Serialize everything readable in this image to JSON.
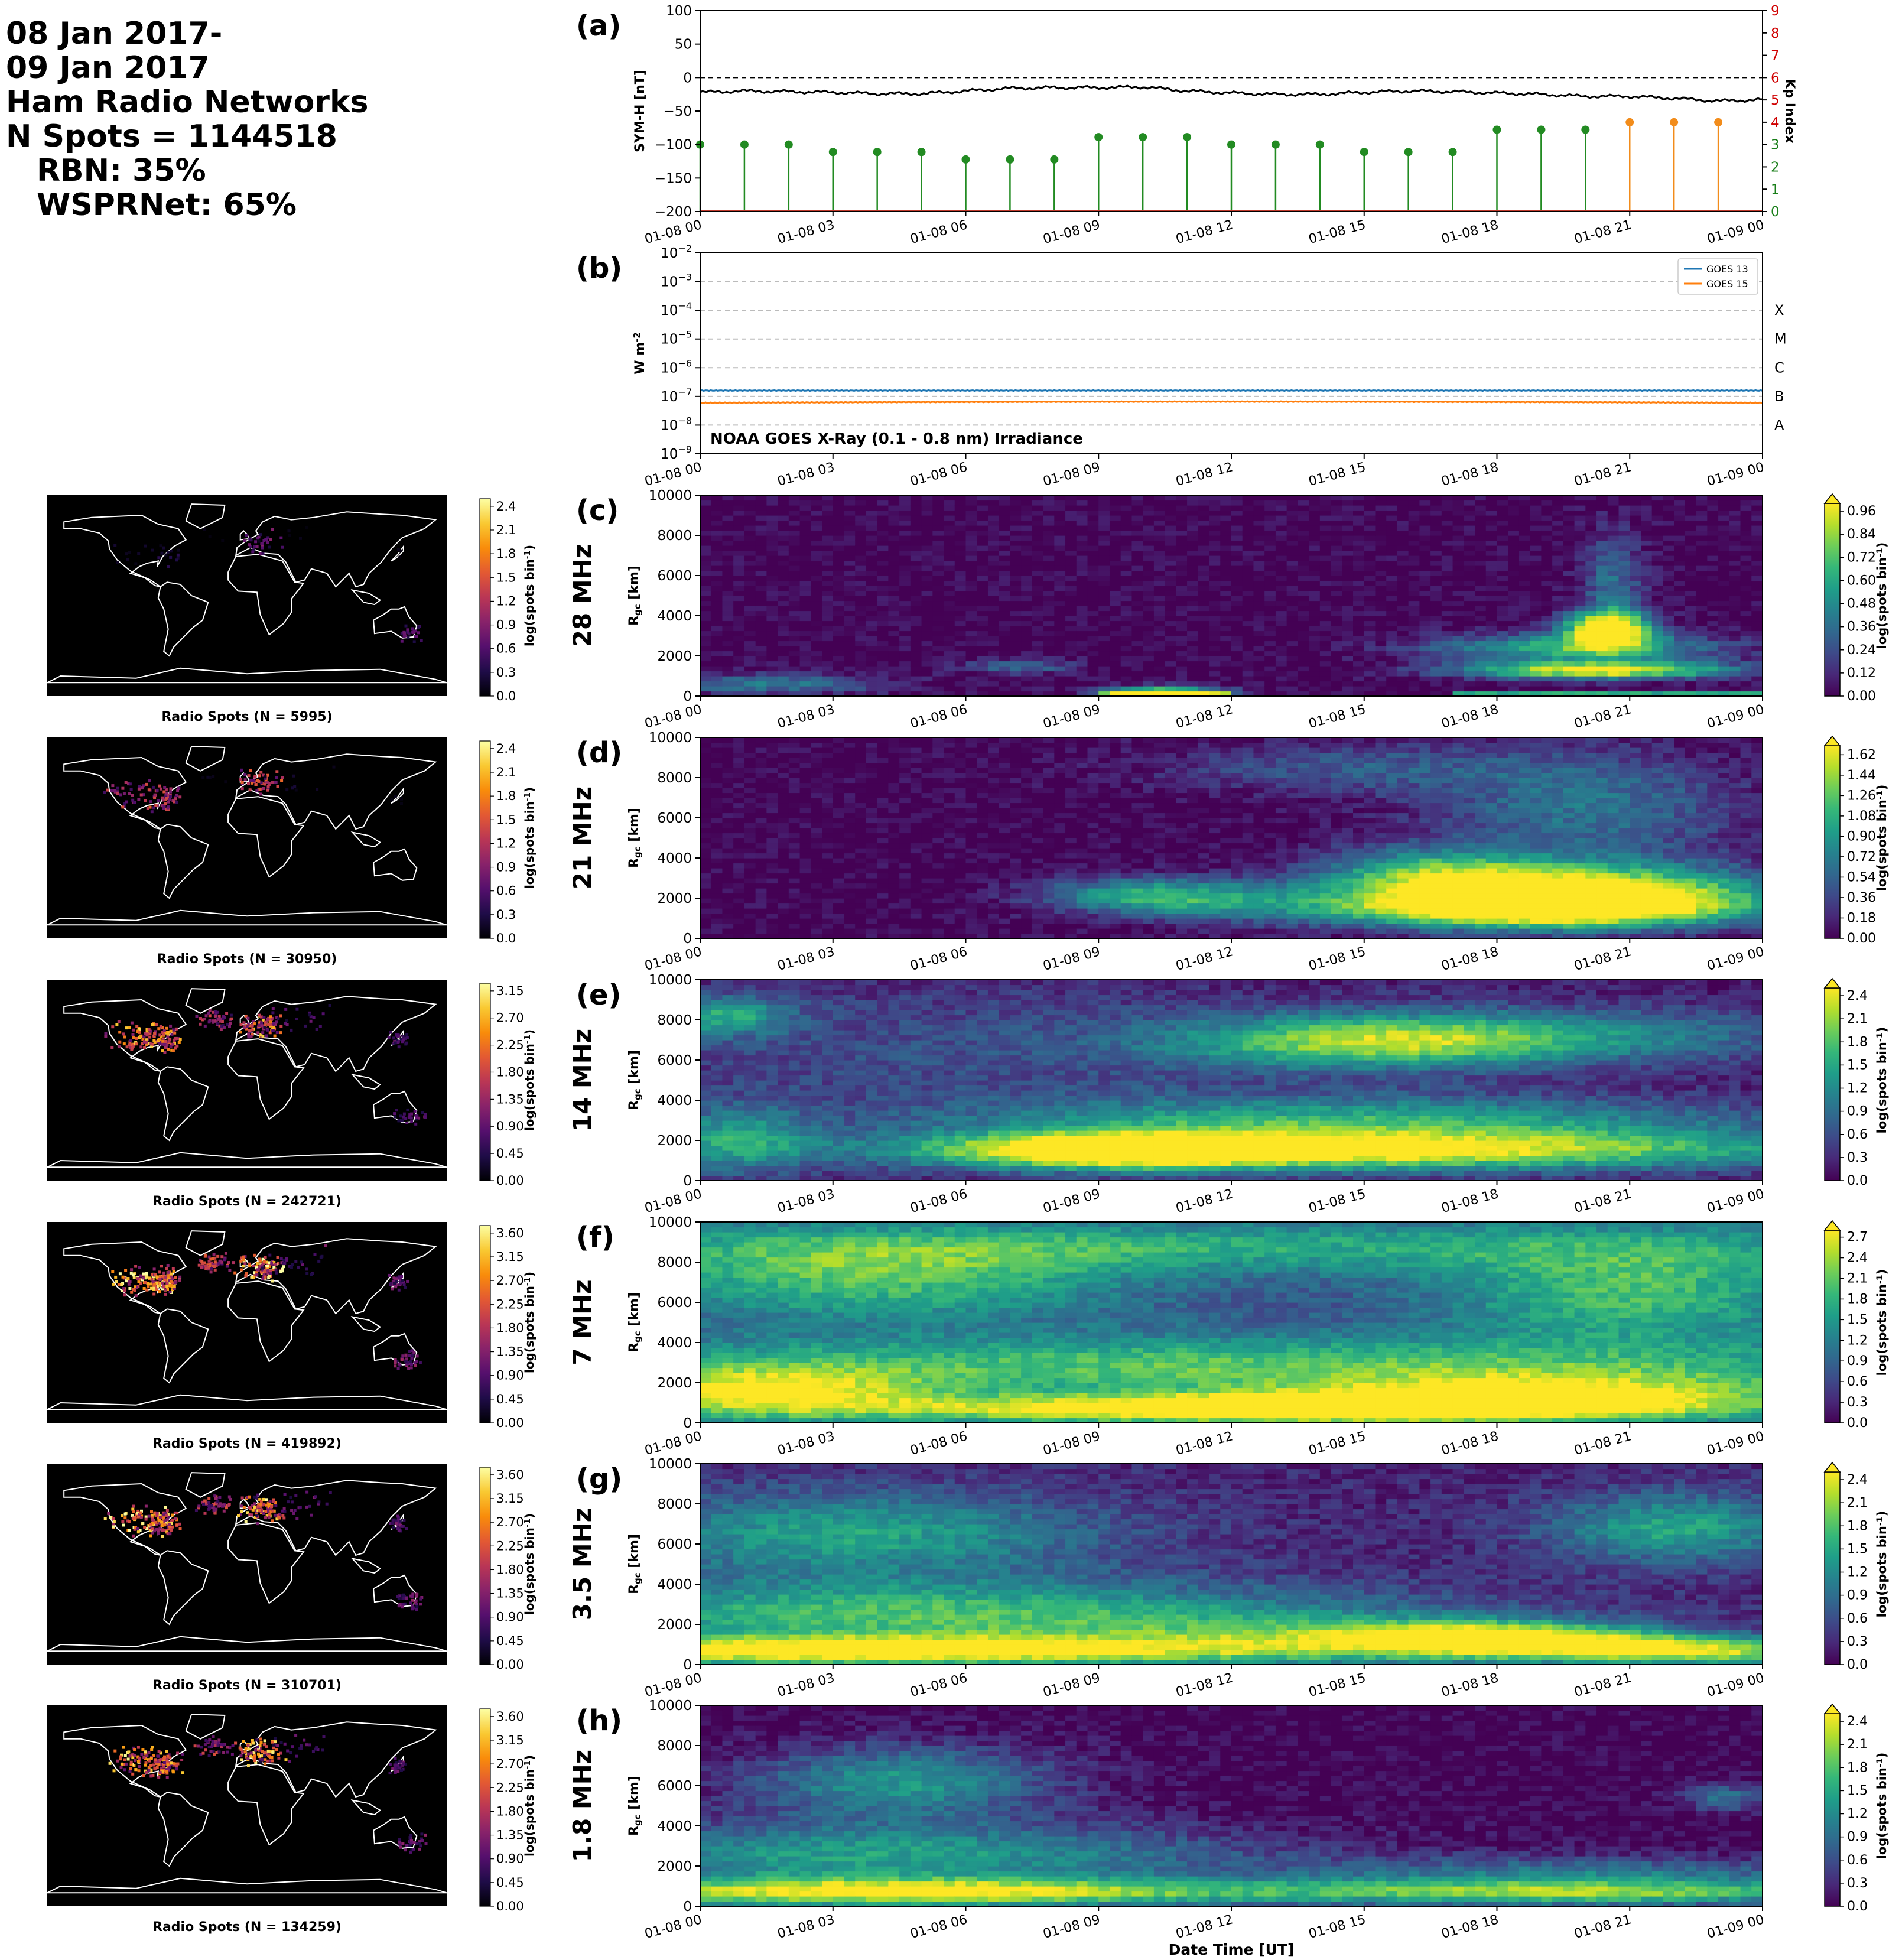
{
  "header": {
    "lines": [
      "08 Jan 2017-",
      "09 Jan 2017",
      "Ham Radio Networks",
      "N Spots = 1144518",
      "RBN: 35%",
      "WSPRNet: 65%"
    ]
  },
  "time_ticks": [
    "01-08 00",
    "01-08 03",
    "01-08 06",
    "01-08 09",
    "01-08 12",
    "01-08 15",
    "01-08 18",
    "01-08 21",
    "01-09 00"
  ],
  "xlabel": "Date Time [UT]",
  "colors": {
    "sym_line": "#000000",
    "kp_green": "#228B22",
    "kp_orange": "#F28C1B",
    "goes13": "#1f77b4",
    "goes15": "#ff7f0e",
    "map_land": "#000000",
    "coast": "#ffffff"
  },
  "chart_data": [
    {
      "type": "line",
      "panel": "(a)",
      "ylabel": "SYM-H [nT]",
      "y2label": "Kp Index",
      "ylim": [
        -200,
        100
      ],
      "y2lim": [
        0,
        9
      ],
      "yticks": [
        -200,
        -150,
        -100,
        -50,
        0,
        50,
        100
      ],
      "y2ticks": [
        0,
        1,
        2,
        3,
        4,
        5,
        6,
        7,
        8,
        9
      ],
      "series": [
        {
          "x_hours": [
            0,
            1,
            2,
            3,
            4,
            5,
            6,
            7,
            8,
            9,
            10,
            11,
            12,
            13,
            14,
            15,
            16,
            17,
            18,
            19,
            20,
            21,
            22,
            23,
            24
          ],
          "values": [
            -22,
            -20,
            -21,
            -22,
            -24,
            -24,
            -20,
            -16,
            -15,
            -15,
            -14,
            -20,
            -23,
            -25,
            -25,
            -22,
            -20,
            -21,
            -23,
            -25,
            -28,
            -28,
            -31,
            -35,
            -33
          ]
        }
      ],
      "kp": {
        "x_hours": [
          0,
          1,
          2,
          3,
          4,
          5,
          6,
          7,
          8,
          9,
          10,
          11,
          12,
          13,
          14,
          15,
          16,
          17,
          18,
          19,
          20,
          21,
          22,
          23
        ],
        "values": [
          3,
          3,
          3,
          2.667,
          2.667,
          2.667,
          2.333,
          2.333,
          2.333,
          3.333,
          3.333,
          3.333,
          3,
          3,
          3,
          2.667,
          2.667,
          2.667,
          3.667,
          3.667,
          3.667,
          4,
          4,
          4
        ]
      }
    },
    {
      "type": "line",
      "panel": "(b)",
      "ylabel": "W m$^{-2}$",
      "ylim_exp": [
        -9,
        -2
      ],
      "scale": "log",
      "flare_classes": [
        "A",
        "B",
        "C",
        "M",
        "X"
      ],
      "legend_location": "upper right",
      "annotation": "NOAA GOES X-Ray (0.1 - 0.8 nm) Irradiance",
      "series": [
        {
          "name": "GOES 13",
          "x_hours": [
            0,
            24
          ],
          "values": [
            1.6e-07,
            1.6e-07
          ]
        },
        {
          "name": "GOES 15",
          "x_hours": [
            0,
            24
          ],
          "values": [
            6e-08,
            6e-08
          ]
        }
      ]
    },
    {
      "type": "heatmap",
      "panel": "(c)",
      "band": "28 MHz",
      "ylabel": "R$_{gc}$ [km]",
      "ylim": [
        0,
        10000
      ],
      "yticks": [
        0,
        2000,
        4000,
        6000,
        8000,
        10000
      ],
      "cbar_label": "log(spots bin$^{-1}$)",
      "cbar_ticks": [
        "0.00",
        "0.12",
        "0.24",
        "0.36",
        "0.48",
        "0.60",
        "0.72",
        "0.84",
        "0.96"
      ],
      "cbar_max": 1.0,
      "map_title": "Radio Spots (N = 5995)",
      "map_cbar_ticks": [
        "0.0",
        "0.3",
        "0.6",
        "0.9",
        "1.2",
        "1.5",
        "1.8",
        "2.1",
        "2.4"
      ],
      "blobs": [
        [
          20.5,
          3400,
          0.7,
          600,
          1.1
        ],
        [
          20.3,
          1300,
          2.2,
          300,
          1.0
        ],
        [
          19.8,
          2400,
          2.3,
          500,
          0.65
        ],
        [
          10.5,
          200,
          1.0,
          200,
          0.95
        ],
        [
          1.5,
          600,
          2.0,
          350,
          0.4
        ],
        [
          20.6,
          5500,
          0.5,
          2000,
          0.35
        ],
        [
          7.2,
          1500,
          0.9,
          250,
          0.35
        ]
      ],
      "base": 0.0,
      "hot_ground": [
        [
          9,
          12,
          0.5
        ],
        [
          17,
          24,
          0.6
        ]
      ]
    },
    {
      "type": "heatmap",
      "panel": "(d)",
      "band": "21 MHz",
      "ylabel": "R$_{gc}$ [km]",
      "ylim": [
        0,
        10000
      ],
      "yticks": [
        0,
        2000,
        4000,
        6000,
        8000,
        10000
      ],
      "cbar_label": "log(spots bin$^{-1}$)",
      "cbar_ticks": [
        "0.00",
        "0.18",
        "0.36",
        "0.54",
        "0.72",
        "0.90",
        "1.08",
        "1.26",
        "1.44",
        "1.62"
      ],
      "cbar_max": 1.7,
      "map_title": "Radio Spots (N = 30950)",
      "map_cbar_ticks": [
        "0.0",
        "0.3",
        "0.6",
        "0.9",
        "1.2",
        "1.5",
        "1.8",
        "2.1",
        "2.4"
      ],
      "blobs": [
        [
          19.8,
          2300,
          3.0,
          1000,
          1.7
        ],
        [
          18.5,
          1500,
          3.5,
          700,
          1.5
        ],
        [
          16.5,
          3300,
          1.8,
          900,
          0.9
        ],
        [
          11.3,
          2000,
          1.8,
          700,
          0.7
        ],
        [
          9.5,
          2200,
          1.5,
          600,
          0.6
        ],
        [
          20.0,
          6500,
          2.5,
          2000,
          0.65
        ],
        [
          14.5,
          8500,
          3.0,
          900,
          0.45
        ]
      ],
      "base": 0.0,
      "hot_ground": []
    },
    {
      "type": "heatmap",
      "panel": "(e)",
      "band": "14 MHz",
      "ylabel": "R$_{gc}$ [km]",
      "ylim": [
        0,
        10000
      ],
      "yticks": [
        0,
        2000,
        4000,
        6000,
        8000,
        10000
      ],
      "cbar_label": "log(spots bin$^{-1}$)",
      "cbar_ticks": [
        "0.0",
        "0.3",
        "0.6",
        "0.9",
        "1.2",
        "1.5",
        "1.8",
        "2.1",
        "2.4"
      ],
      "cbar_max": 2.5,
      "map_title": "Radio Spots (N = 242721)",
      "map_cbar_ticks": [
        "0.00",
        "0.45",
        "0.90",
        "1.35",
        "1.80",
        "2.25",
        "2.70",
        "3.15"
      ],
      "blobs": [
        [
          15.0,
          1500,
          7.0,
          700,
          2.3
        ],
        [
          9.5,
          1500,
          2.5,
          600,
          1.9
        ],
        [
          15.0,
          3000,
          6.5,
          900,
          1.3
        ],
        [
          15.0,
          6900,
          3.0,
          900,
          1.55
        ],
        [
          19.5,
          7200,
          4.0,
          1000,
          1.0
        ],
        [
          0.6,
          8200,
          1.0,
          700,
          1.2
        ],
        [
          0.8,
          2000,
          1.2,
          1200,
          1.1
        ],
        [
          6.0,
          6500,
          6.0,
          2500,
          0.45
        ]
      ],
      "base": 0.15,
      "hot_ground": []
    },
    {
      "type": "heatmap",
      "panel": "(f)",
      "band": "7 MHz",
      "ylabel": "R$_{gc}$ [km]",
      "ylim": [
        0,
        10000
      ],
      "yticks": [
        0,
        2000,
        4000,
        6000,
        8000,
        10000
      ],
      "cbar_label": "log(spots bin$^{-1}$)",
      "cbar_ticks": [
        "0.0",
        "0.3",
        "0.6",
        "0.9",
        "1.2",
        "1.5",
        "1.8",
        "2.1",
        "2.4",
        "2.7"
      ],
      "cbar_max": 2.8,
      "map_title": "Radio Spots (N = 419892)",
      "map_cbar_ticks": [
        "0.00",
        "0.45",
        "0.90",
        "1.35",
        "1.80",
        "2.25",
        "2.70",
        "3.15",
        "3.60"
      ],
      "blobs": [
        [
          12.5,
          700,
          6.0,
          500,
          2.7
        ],
        [
          1.5,
          1500,
          2.5,
          900,
          1.8
        ],
        [
          19.0,
          1300,
          4.0,
          800,
          1.9
        ],
        [
          12.0,
          2800,
          12.0,
          1100,
          1.4
        ],
        [
          4.0,
          7200,
          4.0,
          1500,
          1.3
        ],
        [
          21.0,
          6500,
          3.0,
          1700,
          1.3
        ],
        [
          12.0,
          8800,
          12.0,
          900,
          1.0
        ]
      ],
      "base": 0.65,
      "hot_ground": []
    },
    {
      "type": "heatmap",
      "panel": "(g)",
      "band": "3.5 MHz",
      "ylabel": "R$_{gc}$ [km]",
      "ylim": [
        0,
        10000
      ],
      "yticks": [
        0,
        2000,
        4000,
        6000,
        8000,
        10000
      ],
      "cbar_label": "log(spots bin$^{-1}$)",
      "cbar_ticks": [
        "0.0",
        "0.3",
        "0.6",
        "0.9",
        "1.2",
        "1.5",
        "1.8",
        "2.1",
        "2.4"
      ],
      "cbar_max": 2.5,
      "map_title": "Radio Spots (N = 310701)",
      "map_cbar_ticks": [
        "0.00",
        "0.45",
        "0.90",
        "1.35",
        "1.80",
        "2.25",
        "2.70",
        "3.15",
        "3.60"
      ],
      "blobs": [
        [
          3.5,
          700,
          6.0,
          500,
          2.4
        ],
        [
          18.0,
          1300,
          2.5,
          600,
          2.2
        ],
        [
          22.5,
          700,
          2.5,
          500,
          2.0
        ],
        [
          5.0,
          2500,
          7.0,
          1200,
          1.5
        ],
        [
          3.5,
          6500,
          4.0,
          1500,
          1.2
        ],
        [
          22.0,
          6800,
          2.0,
          1200,
          1.25
        ],
        [
          13.5,
          1200,
          4.0,
          900,
          1.0
        ]
      ],
      "base": 0.25,
      "hot_ground": []
    },
    {
      "type": "heatmap",
      "panel": "(h)",
      "band": "1.8 MHz",
      "ylabel": "R$_{gc}$ [km]",
      "ylim": [
        0,
        10000
      ],
      "yticks": [
        0,
        2000,
        4000,
        6000,
        8000,
        10000
      ],
      "cbar_label": "log(spots bin$^{-1}$)",
      "cbar_ticks": [
        "0.0",
        "0.3",
        "0.6",
        "0.9",
        "1.2",
        "1.5",
        "1.8",
        "2.1",
        "2.4"
      ],
      "cbar_max": 2.5,
      "map_title": "Radio Spots (N = 134259)",
      "map_cbar_ticks": [
        "0.00",
        "0.45",
        "0.90",
        "1.35",
        "1.80",
        "2.25",
        "2.70",
        "3.15",
        "3.60"
      ],
      "blobs": [
        [
          4.5,
          700,
          6.0,
          500,
          2.3
        ],
        [
          20.0,
          700,
          5.0,
          450,
          1.9
        ],
        [
          4.0,
          2500,
          6.0,
          1200,
          1.4
        ],
        [
          4.5,
          6200,
          2.5,
          1300,
          1.3
        ],
        [
          20.0,
          1700,
          4.5,
          600,
          0.9
        ],
        [
          23.2,
          5400,
          0.7,
          500,
          0.9
        ]
      ],
      "base": 0.0,
      "hot_ground": []
    }
  ]
}
